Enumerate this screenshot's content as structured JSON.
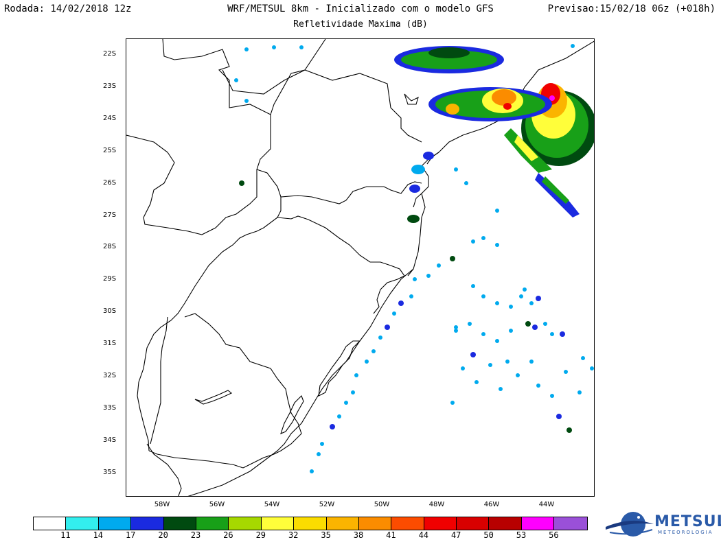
{
  "header": {
    "run_label": "Rodada: 14/02/2018 12z",
    "model_title": "WRF/METSUL 8km - Inicializado com o modelo GFS",
    "forecast_label": "Previsao:15/02/18 06z (+018h)",
    "subtitle": "Refletividade Maxima (dB)"
  },
  "lat_labels": [
    "22S",
    "23S",
    "24S",
    "25S",
    "26S",
    "27S",
    "28S",
    "29S",
    "30S",
    "31S",
    "32S",
    "33S",
    "34S",
    "35S"
  ],
  "lon_labels": [
    "58W",
    "56W",
    "54W",
    "52W",
    "50W",
    "48W",
    "46W",
    "44W"
  ],
  "colorbar": {
    "colors": [
      "#ffffff",
      "#33eeee",
      "#00aaee",
      "#1a2ae0",
      "#004a10",
      "#18a018",
      "#a6d800",
      "#fffe3a",
      "#fbdc00",
      "#fbb400",
      "#fb8c00",
      "#fc4c00",
      "#f00000",
      "#d80000",
      "#b80000",
      "#fe00fe",
      "#9a50d8"
    ],
    "labels": [
      "11",
      "14",
      "17",
      "20",
      "23",
      "26",
      "29",
      "32",
      "35",
      "38",
      "41",
      "44",
      "47",
      "50",
      "53",
      "56"
    ]
  },
  "logo": {
    "name": "METSUL",
    "tagline": "METEOROLOGIA",
    "icon": "globe-swoosh-icon"
  }
}
